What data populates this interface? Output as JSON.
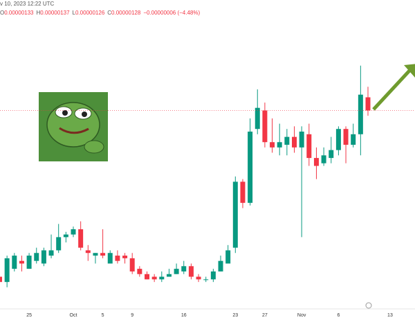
{
  "header": {
    "datetime": "v 10, 2023 12:22 UTC",
    "ohlc": [
      {
        "label": "O",
        "value": "0.00000133"
      },
      {
        "label": "H",
        "value": "0.00000137"
      },
      {
        "label": "L",
        "value": "0.00000126"
      },
      {
        "label": "C",
        "value": "0.00000128"
      }
    ],
    "change": "−0.00000006 (−4.48%)"
  },
  "chart_data": {
    "type": "candlestick",
    "categories": [
      null,
      null,
      null,
      null,
      "25",
      null,
      null,
      null,
      null,
      null,
      "Oct",
      null,
      null,
      null,
      "5",
      null,
      null,
      null,
      "9",
      null,
      null,
      null,
      null,
      null,
      null,
      "16",
      null,
      null,
      null,
      null,
      null,
      null,
      "23",
      null,
      null,
      null,
      "27",
      null,
      null,
      null,
      null,
      "Nov",
      null,
      null,
      null,
      null,
      "6",
      null,
      null,
      null,
      null,
      null,
      null,
      "13"
    ],
    "open": [
      6.5e-07,
      6.3e-07,
      6.8e-07,
      7.1e-07,
      6.8e-07,
      7.1e-07,
      7e-07,
      7.3e-07,
      7.5e-07,
      8e-07,
      8.1e-07,
      8.3e-07,
      7.5e-07,
      7.3e-07,
      7.4e-07,
      7e-07,
      7.3e-07,
      7.3e-07,
      7.2e-07,
      6.8e-07,
      6.6e-07,
      6.5e-07,
      6.4e-07,
      6.5e-07,
      6.6e-07,
      6.7e-07,
      6.9e-07,
      6.5e-07,
      6.4e-07,
      6.4e-07,
      6.7e-07,
      7e-07,
      7.6e-07,
      1.01e-06,
      9.3e-07,
      1.21e-06,
      1.28e-06,
      1.16e-06,
      1.14e-06,
      1.15e-06,
      1.18e-06,
      1.14e-06,
      1.19e-06,
      1.1e-06,
      1.08e-06,
      1.1e-06,
      1.13e-06,
      1.21e-06,
      1.15e-06,
      1.19e-06,
      1.33e-06,
      null,
      null,
      null
    ],
    "high": [
      7.6e-07,
      7.3e-07,
      7.4e-07,
      7.3e-07,
      7.4e-07,
      7.6e-07,
      7.6e-07,
      8.1e-07,
      8.5e-07,
      8.2e-07,
      8.4e-07,
      8.6e-07,
      7.7e-07,
      7.4e-07,
      8.3e-07,
      7.5e-07,
      7.5e-07,
      7.4e-07,
      7.4e-07,
      6.9e-07,
      6.7e-07,
      6.6e-07,
      6.7e-07,
      6.8e-07,
      7e-07,
      7.1e-07,
      7e-07,
      6.6e-07,
      6.5e-07,
      6.8e-07,
      7.3e-07,
      7.7e-07,
      1.03e-06,
      1.02e-06,
      1.25e-06,
      1.36e-06,
      1.31e-06,
      1.25e-06,
      1.23e-06,
      1.21e-06,
      1.22e-06,
      1.22e-06,
      1.23e-06,
      1.14e-06,
      1.14e-06,
      1.18e-06,
      1.22e-06,
      1.22e-06,
      1.23e-06,
      1.45e-06,
      1.37e-06,
      null,
      null,
      null
    ],
    "low": [
      6.2e-07,
      6.1e-07,
      6.7e-07,
      6.7e-07,
      6.8e-07,
      7e-07,
      6.9e-07,
      7.2e-07,
      7.4e-07,
      7.8e-07,
      8e-07,
      7.5e-07,
      7.1e-07,
      7e-07,
      7.2e-07,
      7e-07,
      7e-07,
      7e-07,
      6.6e-07,
      6.5e-07,
      6.4e-07,
      6.3e-07,
      6.3e-07,
      6.5e-07,
      6.6e-07,
      6.6e-07,
      6.4e-07,
      6.3e-07,
      6.3e-07,
      6.3e-07,
      6.7e-07,
      7e-07,
      7.4e-07,
      9.1e-07,
      9.2e-07,
      1.19e-06,
      1.14e-06,
      1.12e-06,
      1.11e-06,
      1.11e-06,
      1.12e-06,
      8e-07,
      1.07e-06,
      1.02e-06,
      1.07e-06,
      1.08e-06,
      1.11e-06,
      1.08e-06,
      1.14e-06,
      1.11e-06,
      1.26e-06,
      null,
      null,
      null
    ],
    "close": [
      6.3e-07,
      7.2e-07,
      7.3e-07,
      7e-07,
      7.3e-07,
      7.4e-07,
      7.5e-07,
      7.5e-07,
      8e-07,
      8.1e-07,
      8.3e-07,
      7.6e-07,
      7.4e-07,
      7.4e-07,
      7.3e-07,
      7.4e-07,
      7.1e-07,
      7.2e-07,
      6.7e-07,
      6.6e-07,
      6.4e-07,
      6.4e-07,
      6.5e-07,
      6.6e-07,
      6.8e-07,
      6.9e-07,
      6.5e-07,
      6.4e-07,
      6.4e-07,
      6.7e-07,
      7.1e-07,
      7.5e-07,
      1.01e-06,
      9.3e-07,
      1.2e-06,
      1.29e-06,
      1.16e-06,
      1.14e-06,
      1.16e-06,
      1.18e-06,
      1.14e-06,
      1.2e-06,
      1.1e-06,
      1.07e-06,
      1.11e-06,
      1.13e-06,
      1.21e-06,
      1.15e-06,
      1.19e-06,
      1.34e-06,
      1.28e-06,
      null,
      null,
      null
    ],
    "up_color": "#089981",
    "down_color": "#f23645",
    "ylim": [
      5.7e-07,
      1.62e-06
    ]
  }
}
